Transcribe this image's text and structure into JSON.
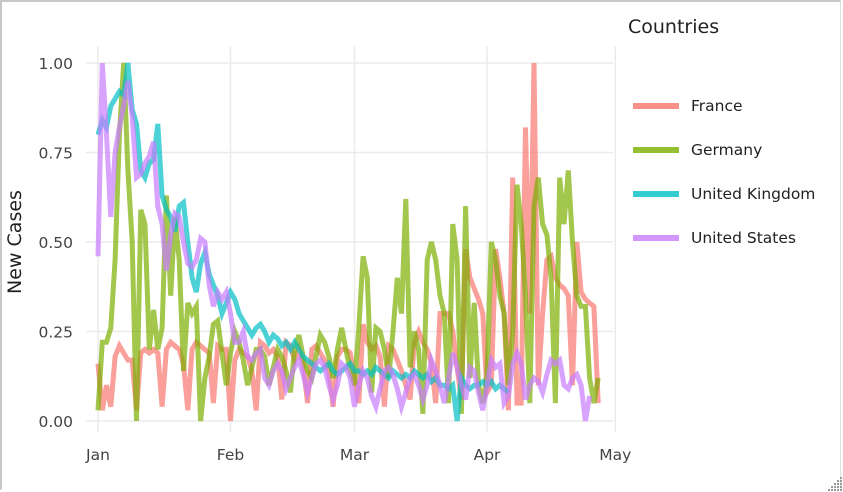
{
  "legend": {
    "title": "Countries",
    "items": [
      {
        "label": "France",
        "color": "#F8766D"
      },
      {
        "label": "Germany",
        "color": "#7CAE00"
      },
      {
        "label": "United Kingdom",
        "color": "#00BFC4"
      },
      {
        "label": "United States",
        "color": "#C77CFF"
      }
    ]
  },
  "axes": {
    "ylabel": "New Cases",
    "yticks": [
      "0.00",
      "0.25",
      "0.50",
      "0.75",
      "1.00"
    ],
    "xticks": [
      "Jan",
      "Feb",
      "Mar",
      "Apr",
      "May"
    ]
  },
  "chart_data": {
    "type": "line",
    "title": "",
    "xlabel": "",
    "ylabel": "New Cases",
    "ylim": [
      0,
      1
    ],
    "xlim": [
      "Jan 1",
      "May 1"
    ],
    "x_tick_labels": [
      "Jan",
      "Feb",
      "Mar",
      "Apr",
      "May"
    ],
    "y_tick_labels": [
      "0.00",
      "0.25",
      "0.50",
      "0.75",
      "1.00"
    ],
    "grid": true,
    "legend_position": "right",
    "legend_title": "Countries",
    "x_start_day": 0,
    "x_step_days": 1,
    "series": [
      {
        "name": "France",
        "color": "#F8766D",
        "values": [
          0.16,
          0.03,
          0.1,
          0.04,
          0.18,
          0.21,
          0.19,
          0.17,
          0.17,
          0.03,
          0.19,
          0.2,
          0.19,
          0.2,
          0.19,
          0.04,
          0.2,
          0.22,
          0.21,
          0.2,
          0.16,
          0.03,
          0.2,
          0.22,
          0.21,
          0.2,
          0.19,
          0.05,
          0.21,
          0.2,
          0.2,
          0.0,
          0.17,
          0.2,
          0.19,
          0.18,
          0.14,
          0.03,
          0.22,
          0.21,
          0.19,
          0.2,
          0.18,
          0.06,
          0.22,
          0.21,
          0.17,
          0.2,
          0.16,
          0.05,
          0.2,
          0.21,
          0.19,
          0.17,
          0.14,
          0.04,
          0.18,
          0.2,
          0.2,
          0.19,
          0.12,
          0.05,
          0.27,
          0.22,
          0.2,
          0.21,
          0.18,
          0.04,
          0.21,
          0.2,
          0.17,
          0.14,
          0.1,
          0.06,
          0.22,
          0.25,
          0.22,
          0.2,
          0.16,
          0.05,
          0.3,
          0.3,
          0.3,
          0.25,
          0.15,
          0.06,
          0.48,
          0.4,
          0.37,
          0.34,
          0.3,
          0.08,
          0.1,
          0.48,
          0.4,
          0.3,
          0.03,
          0.68,
          0.05,
          0.05,
          0.82,
          0.3,
          1.0,
          0.1,
          0.3,
          0.45,
          0.46,
          0.4,
          0.38,
          0.37,
          0.35,
          0.1,
          0.5,
          0.36,
          0.34,
          0.33,
          0.32,
          0.05
        ],
        "note": "approximate daily normalized values read from chart"
      },
      {
        "name": "Germany",
        "color": "#7CAE00",
        "values": [
          0.03,
          0.22,
          0.22,
          0.26,
          0.45,
          0.8,
          1.0,
          0.7,
          0.5,
          0.0,
          0.59,
          0.55,
          0.2,
          0.31,
          0.2,
          0.26,
          0.63,
          0.35,
          0.57,
          0.45,
          0.14,
          0.33,
          0.3,
          0.32,
          0.0,
          0.12,
          0.18,
          0.27,
          0.28,
          0.19,
          0.1,
          0.19,
          0.25,
          0.22,
          0.17,
          0.1,
          0.15,
          0.2,
          0.2,
          0.18,
          0.1,
          0.15,
          0.2,
          0.18,
          0.14,
          0.08,
          0.2,
          0.24,
          0.18,
          0.14,
          0.12,
          0.18,
          0.24,
          0.22,
          0.18,
          0.12,
          0.2,
          0.26,
          0.2,
          0.14,
          0.1,
          0.26,
          0.46,
          0.4,
          0.08,
          0.26,
          0.25,
          0.2,
          0.12,
          0.25,
          0.4,
          0.3,
          0.62,
          0.15,
          0.25,
          0.2,
          0.02,
          0.45,
          0.5,
          0.45,
          0.35,
          0.3,
          0.05,
          0.55,
          0.45,
          0.02,
          0.6,
          0.12,
          0.33,
          0.1,
          0.05,
          0.13,
          0.5,
          0.45,
          0.35,
          0.3,
          0.1,
          0.25,
          0.66,
          0.55,
          0.35,
          0.05,
          0.6,
          0.68,
          0.55,
          0.52,
          0.4,
          0.05,
          0.68,
          0.55,
          0.7,
          0.5,
          0.35,
          0.32,
          0.32,
          0.12,
          0.05,
          0.12
        ],
        "note": "approximate"
      },
      {
        "name": "United Kingdom",
        "color": "#00BFC4",
        "values": [
          0.8,
          0.84,
          0.82,
          0.88,
          0.9,
          0.92,
          0.91,
          1.0,
          0.87,
          0.83,
          0.7,
          0.68,
          0.72,
          0.73,
          0.83,
          0.63,
          0.59,
          0.57,
          0.53,
          0.6,
          0.61,
          0.5,
          0.4,
          0.36,
          0.44,
          0.47,
          0.41,
          0.38,
          0.35,
          0.3,
          0.33,
          0.36,
          0.34,
          0.3,
          0.28,
          0.26,
          0.24,
          0.26,
          0.27,
          0.25,
          0.22,
          0.24,
          0.23,
          0.21,
          0.22,
          0.2,
          0.22,
          0.2,
          0.18,
          0.17,
          0.16,
          0.15,
          0.14,
          0.15,
          0.16,
          0.14,
          0.13,
          0.14,
          0.15,
          0.16,
          0.14,
          0.14,
          0.13,
          0.14,
          0.13,
          0.15,
          0.14,
          0.13,
          0.12,
          0.14,
          0.13,
          0.12,
          0.13,
          0.12,
          0.14,
          0.13,
          0.12,
          0.13,
          0.11,
          0.12,
          0.1,
          0.1,
          0.09,
          0.1,
          0.0,
          0.12,
          0.1,
          0.09,
          0.1,
          0.1,
          0.11,
          0.1,
          0.11,
          0.09,
          0.1,
          0.09,
          0.08
        ],
        "note": "approximate"
      },
      {
        "name": "United States",
        "color": "#C77CFF",
        "values": [
          0.46,
          1.0,
          0.8,
          0.57,
          0.75,
          0.82,
          0.88,
          0.95,
          0.85,
          0.68,
          0.69,
          0.72,
          0.74,
          0.78,
          0.6,
          0.55,
          0.42,
          0.52,
          0.58,
          0.57,
          0.5,
          0.44,
          0.43,
          0.45,
          0.51,
          0.5,
          0.38,
          0.32,
          0.36,
          0.34,
          0.36,
          0.3,
          0.22,
          0.22,
          0.25,
          0.18,
          0.17,
          0.19,
          0.2,
          0.12,
          0.1,
          0.14,
          0.16,
          0.14,
          0.09,
          0.12,
          0.15,
          0.17,
          0.13,
          0.08,
          0.12,
          0.16,
          0.17,
          0.15,
          0.1,
          0.06,
          0.1,
          0.16,
          0.15,
          0.12,
          0.04,
          0.1,
          0.14,
          0.12,
          0.07,
          0.04,
          0.09,
          0.14,
          0.15,
          0.13,
          0.09,
          0.04,
          0.08,
          0.12,
          0.13,
          0.1,
          0.06,
          0.1,
          0.17,
          0.14,
          0.1,
          0.05,
          0.12,
          0.19,
          0.15,
          0.1,
          0.06,
          0.15,
          0.14,
          0.08,
          0.03,
          0.1,
          0.17,
          0.15,
          0.16,
          0.05,
          0.07,
          0.16,
          0.19,
          0.16,
          0.06,
          0.1,
          0.12,
          0.11,
          0.08,
          0.13,
          0.17,
          0.16,
          0.17,
          0.1,
          0.09,
          0.12,
          0.13,
          0.1,
          0.0,
          0.07
        ],
        "note": "approximate"
      }
    ]
  }
}
